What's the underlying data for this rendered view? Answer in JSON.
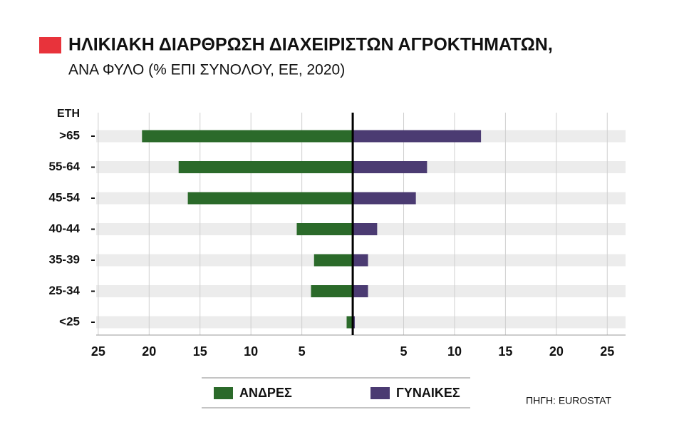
{
  "chart_data": {
    "type": "bar",
    "orientation": "horizontal-pyramid",
    "title": "ΗΛΙΚΙΑΚΗ ΔΙΑΡΘΡΩΣΗ ΔΙΑΧΕΙΡΙΣΤΩΝ ΑΓΡΟΚΤΗΜΑΤΩΝ,",
    "subtitle": "ΑΝΑ ΦΥΛΟ (% ΕΠΙ ΣΥΝΟΛΟΥ, ΕΕ, 2020)",
    "y_label": "ΕΤΗ",
    "source": "ΠΗΓΗ: EUROSTAT",
    "categories": [
      ">65",
      "55-64",
      "45-54",
      "40-44",
      "35-39",
      "25-34",
      "<25"
    ],
    "series": [
      {
        "name": "ΑΝΔΡΕΣ",
        "color": "#2b6a2a",
        "side": "left",
        "values": [
          20.7,
          17.1,
          16.2,
          5.5,
          3.8,
          4.1,
          0.6
        ]
      },
      {
        "name": "ΓΥΝΑΙΚΕΣ",
        "color": "#4b3b72",
        "side": "right",
        "values": [
          12.6,
          7.3,
          6.2,
          2.4,
          1.5,
          1.5,
          0.2
        ]
      }
    ],
    "xlim": [
      -25.2,
      26.8
    ],
    "xticks": [
      {
        "value": -25,
        "label": "25"
      },
      {
        "value": -20,
        "label": "20"
      },
      {
        "value": -15,
        "label": "15"
      },
      {
        "value": -10,
        "label": "10"
      },
      {
        "value": -5,
        "label": "5"
      },
      5,
      10,
      15,
      20,
      25
    ],
    "grid": true
  }
}
